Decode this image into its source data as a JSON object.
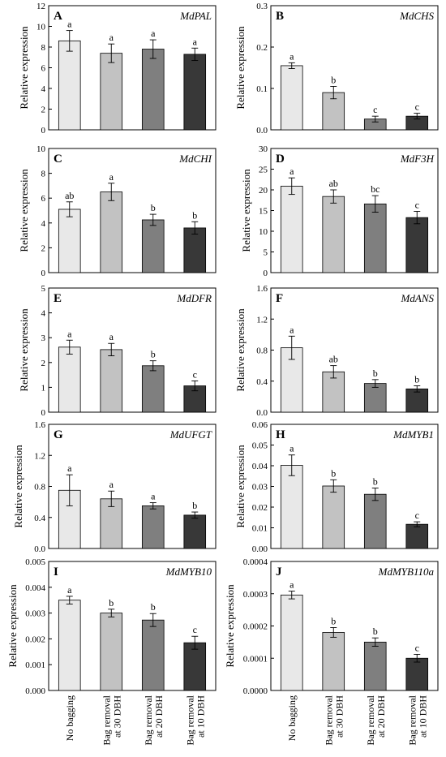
{
  "chart_data": {
    "type": "bar",
    "categories": [
      "No bagging",
      "Bag removal\nat 30 DBH",
      "Bag removal\nat 20 DBH",
      "Bag removal\nat 10 DBH"
    ],
    "bar_colors": [
      "#e8e8e8",
      "#c2c2c2",
      "#7f7f7f",
      "#383838"
    ],
    "ylabel": "Relative expression",
    "panels": [
      {
        "letter": "A",
        "gene": "MdPAL",
        "ylim": [
          0,
          12
        ],
        "ticks": [
          "0",
          "2",
          "4",
          "6",
          "8",
          "10",
          "12"
        ],
        "values": [
          8.6,
          7.4,
          7.8,
          7.3
        ],
        "errors": [
          1.0,
          0.9,
          0.9,
          0.6
        ],
        "sig": [
          "a",
          "a",
          "a",
          "a"
        ]
      },
      {
        "letter": "B",
        "gene": "MdCHS",
        "ylim": [
          0,
          0.3
        ],
        "ticks": [
          "0.0",
          "0.1",
          "0.2",
          "0.3"
        ],
        "values": [
          0.155,
          0.09,
          0.026,
          0.033
        ],
        "errors": [
          0.007,
          0.015,
          0.007,
          0.007
        ],
        "sig": [
          "a",
          "b",
          "c",
          "c"
        ]
      },
      {
        "letter": "C",
        "gene": "MdCHI",
        "ylim": [
          0,
          10
        ],
        "ticks": [
          "0",
          "2",
          "4",
          "6",
          "8",
          "10"
        ],
        "values": [
          5.1,
          6.5,
          4.25,
          3.6
        ],
        "errors": [
          0.6,
          0.7,
          0.45,
          0.5
        ],
        "sig": [
          "ab",
          "a",
          "b",
          "b"
        ]
      },
      {
        "letter": "D",
        "gene": "MdF3H",
        "ylim": [
          0,
          30
        ],
        "ticks": [
          "0",
          "5",
          "10",
          "15",
          "20",
          "25",
          "30"
        ],
        "values": [
          20.9,
          18.4,
          16.6,
          13.3
        ],
        "errors": [
          2.0,
          1.6,
          2.0,
          1.5
        ],
        "sig": [
          "a",
          "ab",
          "bc",
          "c"
        ]
      },
      {
        "letter": "E",
        "gene": "MdDFR",
        "ylim": [
          0,
          5
        ],
        "ticks": [
          "0",
          "1",
          "2",
          "3",
          "4",
          "5"
        ],
        "values": [
          2.62,
          2.52,
          1.87,
          1.06
        ],
        "errors": [
          0.28,
          0.25,
          0.2,
          0.2
        ],
        "sig": [
          "a",
          "a",
          "b",
          "c"
        ]
      },
      {
        "letter": "F",
        "gene": "MdANS",
        "ylim": [
          0,
          1.6
        ],
        "ticks": [
          "0.0",
          "0.4",
          "0.8",
          "1.2",
          "1.6"
        ],
        "values": [
          0.83,
          0.52,
          0.37,
          0.3
        ],
        "errors": [
          0.15,
          0.08,
          0.05,
          0.04
        ],
        "sig": [
          "a",
          "ab",
          "b",
          "b"
        ]
      },
      {
        "letter": "G",
        "gene": "MdUFGT",
        "ylim": [
          0,
          1.6
        ],
        "ticks": [
          "0.0",
          "0.4",
          "0.8",
          "1.2",
          "1.6"
        ],
        "values": [
          0.75,
          0.64,
          0.55,
          0.43
        ],
        "errors": [
          0.2,
          0.1,
          0.04,
          0.04
        ],
        "sig": [
          "a",
          "a",
          "a",
          "b"
        ]
      },
      {
        "letter": "H",
        "gene": "MdMYB1",
        "ylim": [
          0,
          0.06
        ],
        "ticks": [
          "0.00",
          "0.01",
          "0.02",
          "0.03",
          "0.04",
          "0.05",
          "0.06"
        ],
        "values": [
          0.0402,
          0.0302,
          0.0262,
          0.0117
        ],
        "errors": [
          0.005,
          0.003,
          0.003,
          0.0012
        ],
        "sig": [
          "a",
          "b",
          "b",
          "c"
        ]
      },
      {
        "letter": "I",
        "gene": "MdMYB10",
        "ylim": [
          0,
          0.005
        ],
        "ticks": [
          "0.000",
          "0.001",
          "0.002",
          "0.003",
          "0.004",
          "0.005"
        ],
        "values": [
          0.0035,
          0.003,
          0.00273,
          0.00185
        ],
        "errors": [
          0.00015,
          0.00015,
          0.00025,
          0.00025
        ],
        "sig": [
          "a",
          "b",
          "b",
          "c"
        ]
      },
      {
        "letter": "J",
        "gene": "MdMYB110a",
        "ylim": [
          0,
          0.0004
        ],
        "ticks": [
          "0.0000",
          "0.0001",
          "0.0002",
          "0.0003",
          "0.0004"
        ],
        "values": [
          0.000296,
          0.00018,
          0.00015,
          0.0001
        ],
        "errors": [
          1.2e-05,
          1.5e-05,
          1.3e-05,
          1.2e-05
        ],
        "sig": [
          "a",
          "b",
          "b",
          "c"
        ]
      }
    ]
  }
}
